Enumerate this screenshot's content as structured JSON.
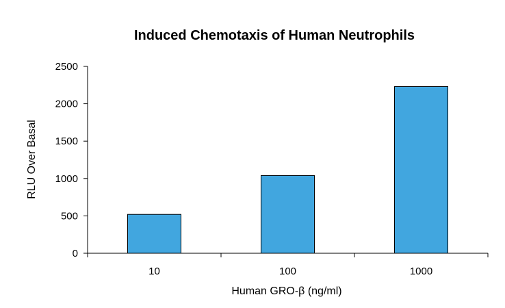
{
  "chart_data": {
    "type": "bar",
    "title": "Induced Chemotaxis of Human Neutrophils",
    "xlabel": "Human GRO-β (ng/ml)",
    "ylabel": "RLU Over Basal",
    "categories": [
      "10",
      "100",
      "1000"
    ],
    "values": [
      520,
      1040,
      2230
    ],
    "ylim": [
      0,
      2500
    ],
    "yticks": [
      0,
      500,
      1000,
      1500,
      2000,
      2500
    ],
    "grid": false,
    "legend": "none",
    "bar_color": "#41a6df",
    "bar_edge_color": "#000000"
  }
}
